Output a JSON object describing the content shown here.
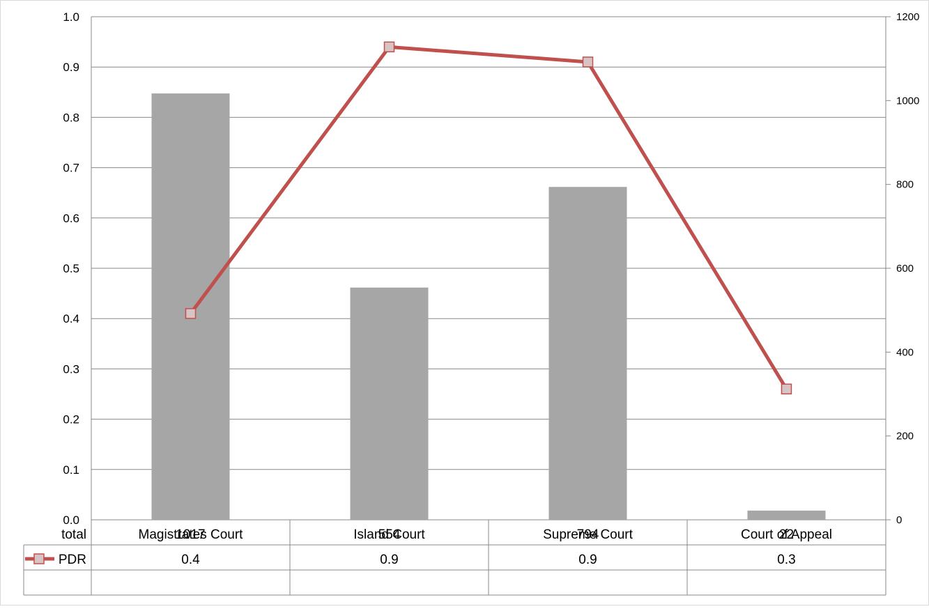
{
  "chart_data": {
    "type": "bar",
    "categories": [
      "Magistrates Court",
      "Island Court",
      "Supreme Court",
      "Court of Appeal"
    ],
    "series": [
      {
        "name": "total",
        "type": "bar",
        "axis": "right",
        "values": [
          1017,
          554,
          794,
          22
        ],
        "table_labels": [
          "1017",
          "554",
          "794",
          "22"
        ],
        "color": "#a6a6a6"
      },
      {
        "name": "PDR",
        "type": "line",
        "axis": "left",
        "values": [
          0.41,
          0.94,
          0.91,
          0.26
        ],
        "table_labels": [
          "0.4",
          "0.9",
          "0.9",
          "0.3"
        ],
        "color": "#c0504d"
      }
    ],
    "y_left": {
      "min": 0,
      "max": 1,
      "ticks": [
        "0.0",
        "0.1",
        "0.2",
        "0.3",
        "0.4",
        "0.5",
        "0.6",
        "0.7",
        "0.8",
        "0.9",
        "1.0"
      ]
    },
    "y_right": {
      "min": 0,
      "max": 1200,
      "ticks": [
        "0",
        "200",
        "400",
        "600",
        "800",
        "1000",
        "1200"
      ]
    },
    "grid": true,
    "legend": "data-table",
    "title": "",
    "xlabel": "",
    "ylabel": ""
  }
}
